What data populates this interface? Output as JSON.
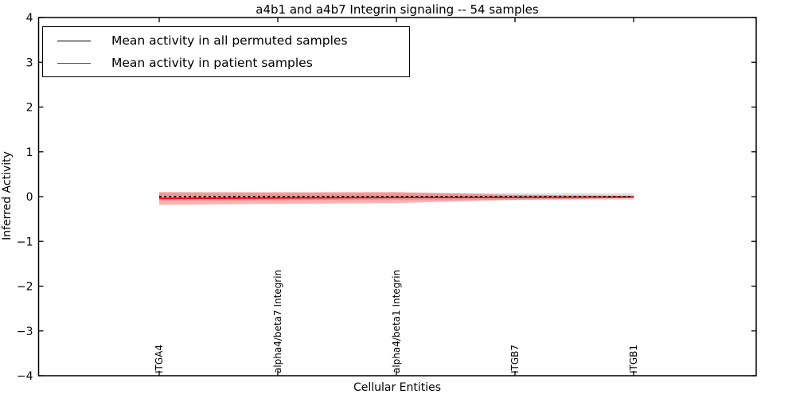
{
  "chart_data": {
    "type": "line",
    "title": "a4b1 and a4b7 Integrin signaling -- 54 samples",
    "xlabel": "Cellular Entities",
    "ylabel": "Inferred Activity",
    "ylim": [
      -4,
      4
    ],
    "yticks": [
      -4,
      -3,
      -2,
      -1,
      0,
      1,
      2,
      3,
      4
    ],
    "grid": false,
    "categories": [
      "ITGA4",
      "alpha4/beta7 Integrin",
      "alpha4/beta1 Integrin",
      "ITGB7",
      "ITGB1"
    ],
    "series": [
      {
        "name": "Mean activity in all permuted samples",
        "color": "#000000",
        "line_style": "dashed",
        "values": [
          0,
          0,
          0,
          0,
          0
        ],
        "band": {
          "half_widths": [
            0.085,
            0.08,
            0.08,
            0.08,
            0.075
          ],
          "color": "#aaaaaa",
          "opacity": 0.38
        }
      },
      {
        "name": "Mean activity in patient samples",
        "color": "#ff0000",
        "line_style": "solid",
        "values": [
          -0.04,
          -0.03,
          -0.02,
          -0.015,
          -0.008
        ],
        "band": {
          "half_widths": [
            0.145,
            0.13,
            0.125,
            0.055,
            0.025
          ],
          "color": "#ff0000",
          "opacity": 0.3
        }
      }
    ],
    "legend": {
      "position": "upper left",
      "entries": [
        {
          "label": "Mean activity in all permuted samples",
          "color": "#000000"
        },
        {
          "label": "Mean activity in patient samples",
          "color": "#ff0000"
        }
      ]
    }
  }
}
